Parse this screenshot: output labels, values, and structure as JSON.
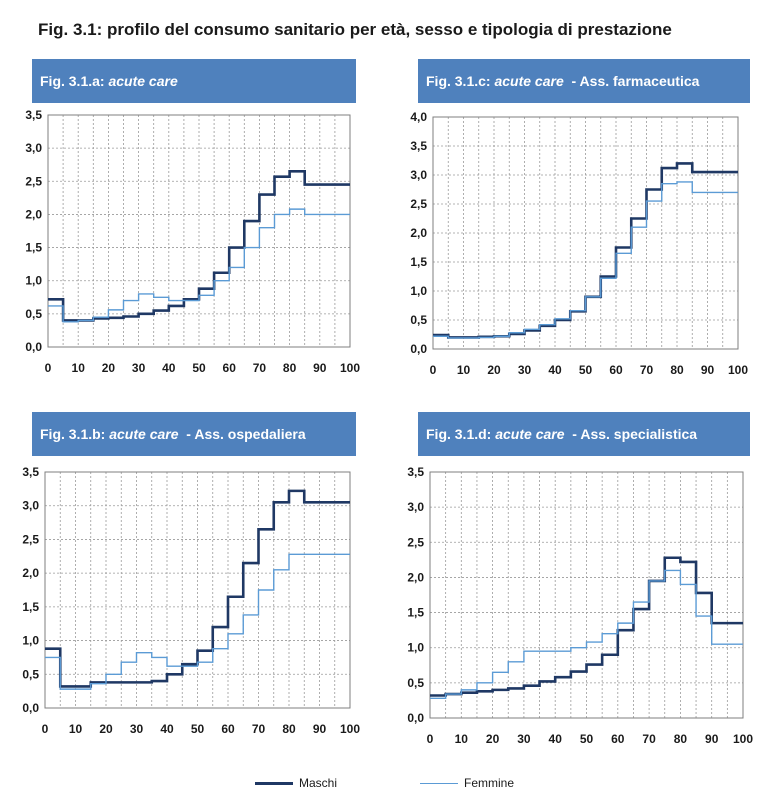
{
  "figure_title": "Fig. 3.1: profilo del consumo sanitario per età, sesso e tipologia di prestazione",
  "colors": {
    "maschi": "#1f3864",
    "femmine": "#5b9bd5",
    "header": "#4f81bd"
  },
  "legend": [
    {
      "name": "Maschi",
      "color": "#1f3864"
    },
    {
      "name": "Femmine",
      "color": "#5b9bd5"
    }
  ],
  "chart_data": [
    {
      "id": "a",
      "type": "line",
      "title_prefix": "Fig. 3.1.a: ",
      "title_italic": "acute care",
      "title_suffix": "",
      "xlabel": "",
      "ylabel": "",
      "xlim": [
        0,
        100
      ],
      "ylim": [
        0,
        3.5
      ],
      "x_ticks": [
        0,
        10,
        20,
        30,
        40,
        50,
        60,
        70,
        80,
        90,
        100
      ],
      "y_ticks": [
        "0,0",
        "0,5",
        "1,0",
        "1,5",
        "2,0",
        "2,5",
        "3,0",
        "3,5"
      ],
      "y_step": 0.5,
      "grid": true,
      "series": [
        {
          "name": "Maschi",
          "x": [
            0,
            5,
            10,
            15,
            20,
            25,
            30,
            35,
            40,
            45,
            50,
            55,
            60,
            65,
            70,
            75,
            80,
            85,
            90,
            95,
            100
          ],
          "y": [
            0.72,
            0.4,
            0.4,
            0.43,
            0.44,
            0.46,
            0.5,
            0.55,
            0.62,
            0.72,
            0.88,
            1.12,
            1.5,
            1.9,
            2.3,
            2.57,
            2.65,
            2.45,
            2.45,
            2.45,
            2.45
          ]
        },
        {
          "name": "Femmine",
          "x": [
            0,
            5,
            10,
            15,
            20,
            25,
            30,
            35,
            40,
            45,
            50,
            55,
            60,
            65,
            70,
            75,
            80,
            85,
            90,
            95,
            100
          ],
          "y": [
            0.62,
            0.38,
            0.4,
            0.45,
            0.56,
            0.7,
            0.8,
            0.75,
            0.7,
            0.7,
            0.78,
            1.0,
            1.2,
            1.5,
            1.8,
            2.0,
            2.08,
            2.0,
            2.0,
            2.0,
            2.0
          ]
        }
      ]
    },
    {
      "id": "c",
      "type": "line",
      "title_prefix": "Fig. 3.1.c: ",
      "title_italic": "acute care",
      "title_suffix": "  - Ass. farmaceutica",
      "xlabel": "",
      "ylabel": "",
      "xlim": [
        0,
        100
      ],
      "ylim": [
        0,
        4.0
      ],
      "x_ticks": [
        0,
        10,
        20,
        30,
        40,
        50,
        60,
        70,
        80,
        90,
        100
      ],
      "y_ticks": [
        "0,0",
        "0,5",
        "1,0",
        "1,5",
        "2,0",
        "2,5",
        "3,0",
        "3,5",
        "4,0"
      ],
      "y_step": 0.5,
      "grid": true,
      "series": [
        {
          "name": "Maschi",
          "x": [
            0,
            5,
            10,
            15,
            20,
            25,
            30,
            35,
            40,
            45,
            50,
            55,
            60,
            65,
            70,
            75,
            80,
            85,
            90,
            95,
            100
          ],
          "y": [
            0.24,
            0.2,
            0.2,
            0.21,
            0.22,
            0.26,
            0.32,
            0.4,
            0.5,
            0.65,
            0.9,
            1.25,
            1.75,
            2.25,
            2.75,
            3.12,
            3.2,
            3.05,
            3.05,
            3.05,
            3.05
          ]
        },
        {
          "name": "Femmine",
          "x": [
            0,
            5,
            10,
            15,
            20,
            25,
            30,
            35,
            40,
            45,
            50,
            55,
            60,
            65,
            70,
            75,
            80,
            85,
            90,
            95,
            100
          ],
          "y": [
            0.22,
            0.19,
            0.19,
            0.2,
            0.22,
            0.28,
            0.34,
            0.42,
            0.52,
            0.66,
            0.9,
            1.22,
            1.65,
            2.1,
            2.55,
            2.85,
            2.88,
            2.7,
            2.7,
            2.7,
            2.7
          ]
        }
      ]
    },
    {
      "id": "b",
      "type": "line",
      "title_prefix": "Fig. 3.1.b: ",
      "title_italic": "acute care",
      "title_suffix": "  - Ass. ospedaliera",
      "xlabel": "",
      "ylabel": "",
      "xlim": [
        0,
        100
      ],
      "ylim": [
        0,
        3.5
      ],
      "x_ticks": [
        0,
        10,
        20,
        30,
        40,
        50,
        60,
        70,
        80,
        90,
        100
      ],
      "y_ticks": [
        "0,0",
        "0,5",
        "1,0",
        "1,5",
        "2,0",
        "2,5",
        "3,0",
        "3,5"
      ],
      "y_step": 0.5,
      "grid": true,
      "series": [
        {
          "name": "Maschi",
          "x": [
            0,
            5,
            10,
            15,
            20,
            25,
            30,
            35,
            40,
            45,
            50,
            55,
            60,
            65,
            70,
            75,
            80,
            85,
            90,
            95,
            100
          ],
          "y": [
            0.88,
            0.32,
            0.32,
            0.38,
            0.38,
            0.38,
            0.38,
            0.4,
            0.5,
            0.65,
            0.85,
            1.2,
            1.65,
            2.15,
            2.65,
            3.05,
            3.22,
            3.05,
            3.05,
            3.05,
            3.05
          ]
        },
        {
          "name": "Femmine",
          "x": [
            0,
            5,
            10,
            15,
            20,
            25,
            30,
            35,
            40,
            45,
            50,
            55,
            60,
            65,
            70,
            75,
            80,
            85,
            90,
            95,
            100
          ],
          "y": [
            0.75,
            0.28,
            0.28,
            0.36,
            0.5,
            0.68,
            0.82,
            0.75,
            0.62,
            0.62,
            0.68,
            0.88,
            1.1,
            1.38,
            1.75,
            2.05,
            2.28,
            2.28,
            2.28,
            2.28,
            2.28
          ]
        }
      ]
    },
    {
      "id": "d",
      "type": "line",
      "title_prefix": "Fig. 3.1.d: ",
      "title_italic": "acute care",
      "title_suffix": "  - Ass. specialistica",
      "xlabel": "",
      "ylabel": "",
      "xlim": [
        0,
        100
      ],
      "ylim": [
        0,
        3.5
      ],
      "x_ticks": [
        0,
        10,
        20,
        30,
        40,
        50,
        60,
        70,
        80,
        90,
        100
      ],
      "y_ticks": [
        "0,0",
        "0,5",
        "1,0",
        "1,5",
        "2,0",
        "2,5",
        "3,0",
        "3,5"
      ],
      "y_step": 0.5,
      "grid": true,
      "series": [
        {
          "name": "Maschi",
          "x": [
            0,
            5,
            10,
            15,
            20,
            25,
            30,
            35,
            40,
            45,
            50,
            55,
            60,
            65,
            70,
            75,
            80,
            85,
            90,
            95,
            100
          ],
          "y": [
            0.32,
            0.34,
            0.36,
            0.38,
            0.4,
            0.42,
            0.46,
            0.52,
            0.58,
            0.66,
            0.76,
            0.9,
            1.25,
            1.55,
            1.95,
            2.28,
            2.22,
            1.78,
            1.35,
            1.35,
            1.35
          ]
        },
        {
          "name": "Femmine",
          "x": [
            0,
            5,
            10,
            15,
            20,
            25,
            30,
            35,
            40,
            45,
            50,
            55,
            60,
            65,
            70,
            75,
            80,
            85,
            90,
            95,
            100
          ],
          "y": [
            0.28,
            0.34,
            0.4,
            0.5,
            0.65,
            0.8,
            0.95,
            0.95,
            0.95,
            1.0,
            1.08,
            1.2,
            1.35,
            1.65,
            1.95,
            2.1,
            1.9,
            1.45,
            1.05,
            1.05,
            1.05
          ]
        }
      ]
    }
  ]
}
